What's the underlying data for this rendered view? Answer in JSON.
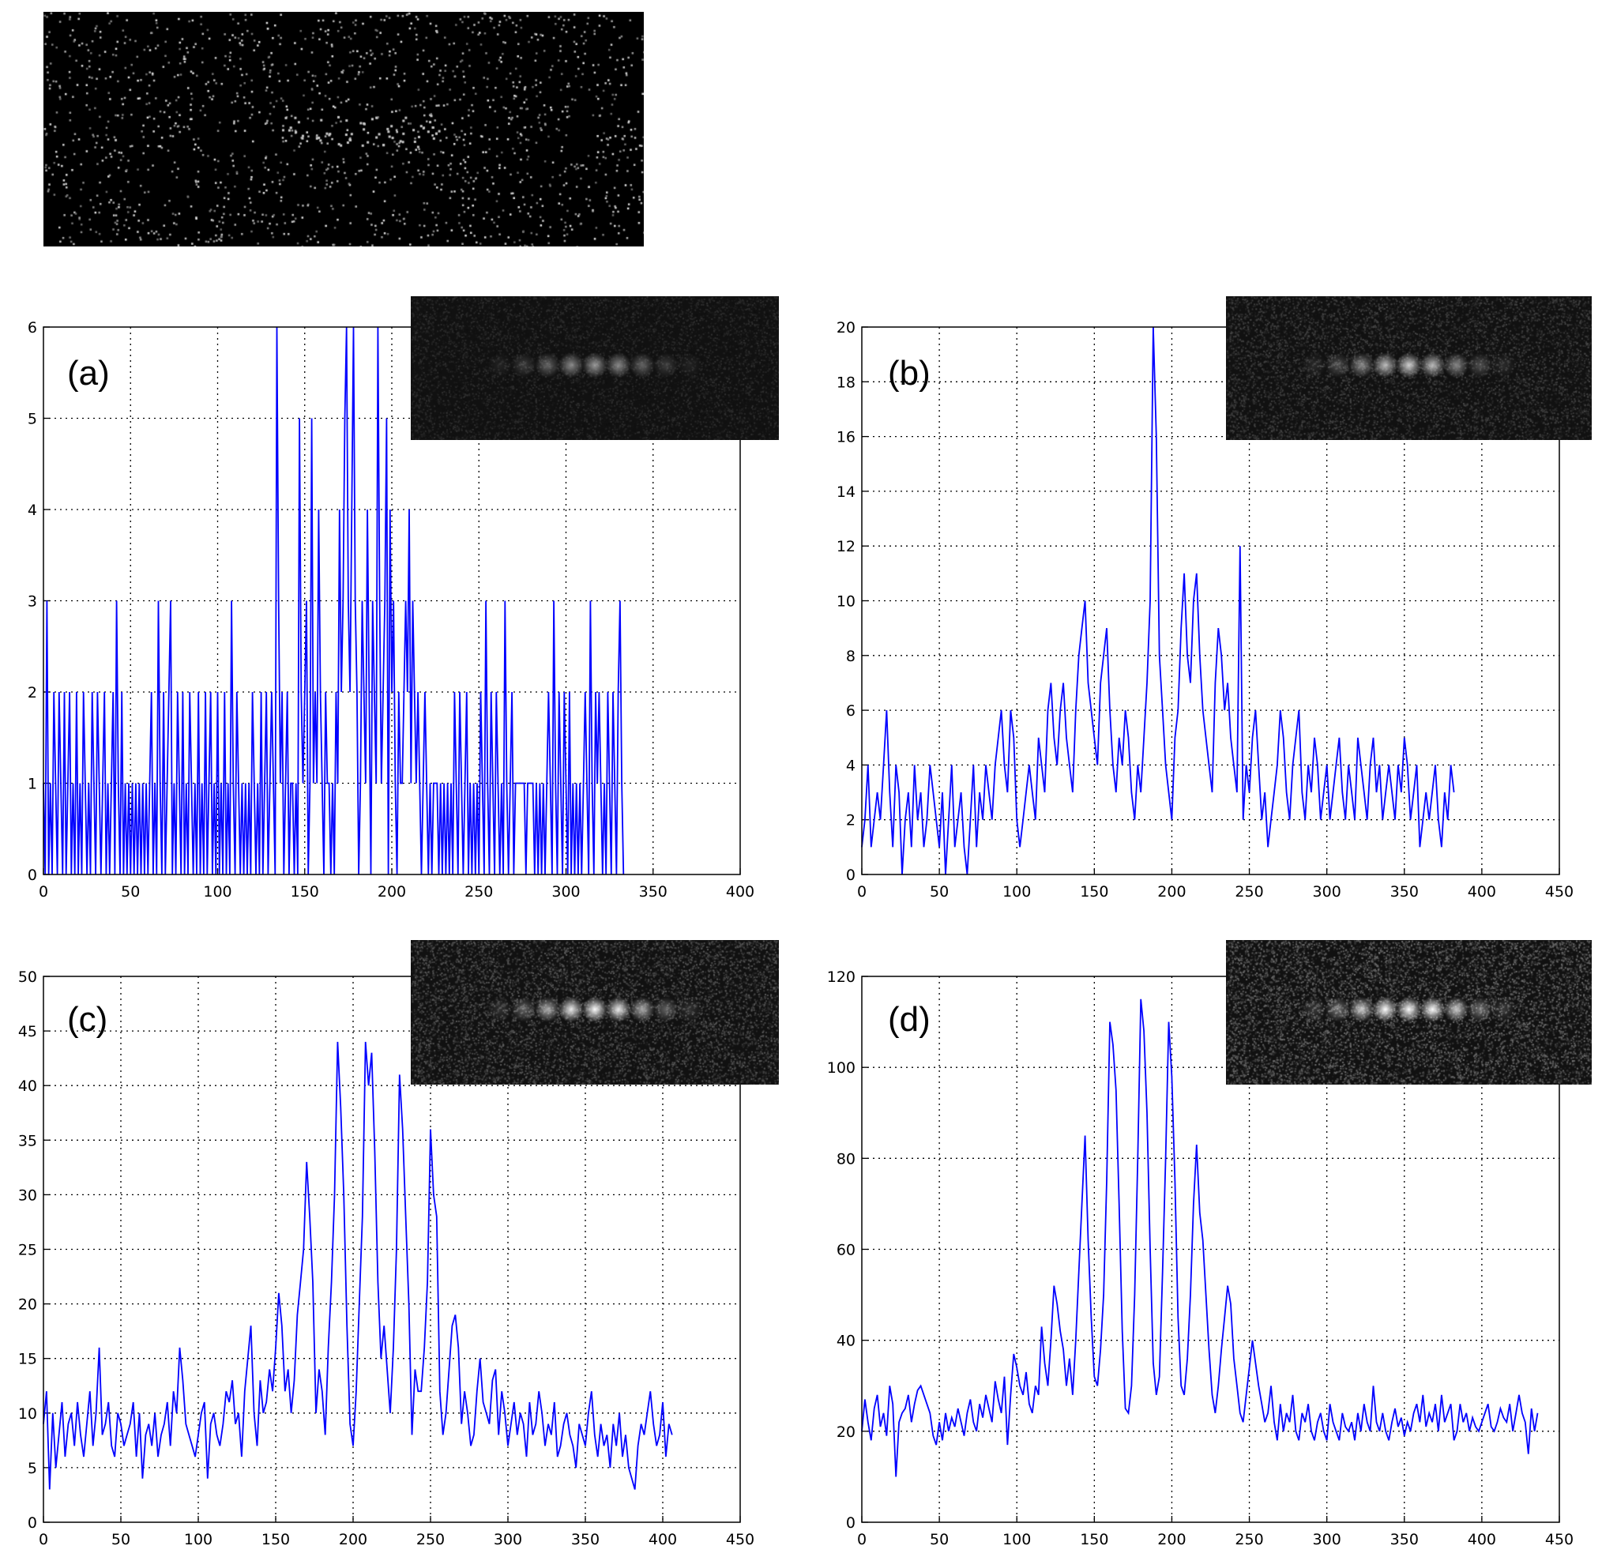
{
  "chart_data": [
    {
      "type": "line",
      "panel_label": "(a)",
      "xlim": [
        0,
        400
      ],
      "ylim": [
        0,
        6
      ],
      "xticks": [
        0,
        50,
        100,
        150,
        200,
        250,
        300,
        350,
        400
      ],
      "yticks": [
        0,
        1,
        2,
        3,
        4,
        5,
        6
      ],
      "grid": true,
      "series_color": "#0000ff",
      "x_start": 0,
      "x_step": 1,
      "y": [
        1,
        0,
        3,
        0,
        1,
        0,
        2,
        1,
        0,
        2,
        1,
        0,
        2,
        0,
        1,
        2,
        0,
        1,
        0,
        2,
        0,
        1,
        0,
        2,
        1,
        0,
        1,
        0,
        2,
        1,
        0,
        2,
        1,
        0,
        1,
        2,
        0,
        1,
        0,
        1,
        2,
        0,
        3,
        1,
        0,
        2,
        0,
        1,
        0,
        1,
        0,
        1,
        0,
        1,
        0,
        1,
        0,
        1,
        0,
        1,
        0,
        1,
        2,
        0,
        1,
        0,
        3,
        1,
        0,
        2,
        0,
        1,
        2,
        3,
        0,
        1,
        0,
        2,
        1,
        0,
        2,
        0,
        1,
        0,
        2,
        1,
        0,
        1,
        0,
        2,
        0,
        1,
        0,
        2,
        0,
        1,
        2,
        0,
        1,
        0,
        2,
        0,
        1,
        0,
        2,
        0,
        1,
        0,
        3,
        1,
        0,
        2,
        1,
        0,
        1,
        0,
        1,
        0,
        1,
        0,
        2,
        1,
        0,
        1,
        0,
        2,
        0,
        1,
        2,
        0,
        1,
        2,
        1,
        0,
        6,
        3,
        1,
        2,
        0,
        1,
        2,
        0,
        1,
        1,
        0,
        1,
        0,
        5,
        2,
        1,
        2,
        3,
        0,
        1,
        5,
        1,
        2,
        1,
        4,
        2,
        1,
        0,
        2,
        1,
        1,
        0,
        1,
        0,
        2,
        1,
        4,
        2,
        3,
        5,
        6,
        3,
        2,
        4,
        6,
        3,
        2,
        0,
        1,
        3,
        2,
        1,
        4,
        2,
        0,
        3,
        2,
        1,
        6,
        3,
        1,
        2,
        3,
        5,
        0,
        4,
        2,
        3,
        1,
        0,
        2,
        1,
        1,
        2,
        3,
        2,
        4,
        1,
        3,
        2,
        1,
        2,
        1,
        0,
        1,
        2,
        1,
        0,
        1,
        0,
        1,
        1,
        1,
        0,
        1,
        0,
        1,
        0,
        1,
        0,
        1,
        0,
        2,
        1,
        0,
        2,
        1,
        0,
        1,
        2,
        0,
        1,
        0,
        1,
        0,
        1,
        0,
        2,
        1,
        0,
        3,
        1,
        0,
        2,
        1,
        0,
        2,
        1,
        0,
        1,
        0,
        3,
        1,
        0,
        1,
        2,
        0,
        1,
        1,
        1,
        1,
        1,
        1,
        0,
        1,
        1,
        1,
        1,
        0,
        1,
        0,
        1,
        0,
        1,
        0,
        1,
        2,
        1,
        0,
        3,
        1,
        0,
        2,
        1,
        0,
        2,
        1,
        0,
        2,
        0,
        1,
        0,
        1,
        0,
        1,
        0,
        1,
        2,
        1,
        0,
        3,
        1,
        0,
        2,
        1,
        2,
        1,
        0,
        1,
        0,
        2,
        1,
        0,
        2,
        1,
        0,
        2,
        3,
        1,
        0
      ]
    },
    {
      "type": "line",
      "panel_label": "(b)",
      "xlim": [
        0,
        450
      ],
      "ylim": [
        0,
        20
      ],
      "xticks": [
        0,
        50,
        100,
        150,
        200,
        250,
        300,
        350,
        400,
        450
      ],
      "yticks": [
        0,
        2,
        4,
        6,
        8,
        10,
        12,
        14,
        16,
        18,
        20
      ],
      "grid": true,
      "series_color": "#0000ff",
      "x_start": 0,
      "x_step": 2,
      "y": [
        1,
        2,
        4,
        1,
        2,
        3,
        2,
        4,
        6,
        3,
        1,
        4,
        3,
        0,
        2,
        3,
        1,
        4,
        2,
        3,
        1,
        2,
        4,
        3,
        2,
        1,
        3,
        0,
        2,
        4,
        1,
        2,
        3,
        1,
        0,
        2,
        4,
        1,
        3,
        2,
        4,
        3,
        2,
        4,
        5,
        6,
        4,
        3,
        6,
        5,
        2,
        1,
        2,
        3,
        4,
        3,
        2,
        5,
        4,
        3,
        6,
        7,
        5,
        4,
        6,
        7,
        5,
        4,
        3,
        6,
        8,
        9,
        10,
        7,
        6,
        5,
        4,
        7,
        8,
        9,
        6,
        4,
        3,
        5,
        4,
        6,
        5,
        3,
        2,
        4,
        3,
        5,
        7,
        10,
        20,
        16,
        8,
        6,
        4,
        3,
        2,
        5,
        6,
        9,
        11,
        8,
        7,
        10,
        11,
        8,
        6,
        5,
        4,
        3,
        7,
        9,
        8,
        6,
        7,
        5,
        4,
        3,
        12,
        2,
        4,
        3,
        5,
        6,
        4,
        2,
        3,
        1,
        2,
        3,
        4,
        6,
        5,
        3,
        2,
        4,
        5,
        6,
        3,
        2,
        4,
        3,
        5,
        4,
        2,
        3,
        4,
        2,
        3,
        4,
        5,
        3,
        2,
        4,
        3,
        2,
        5,
        4,
        3,
        2,
        4,
        5,
        3,
        4,
        2,
        3,
        4,
        3,
        2,
        4,
        3,
        5,
        4,
        2,
        3,
        4,
        1,
        2,
        3,
        2,
        3,
        4,
        2,
        1,
        3,
        2,
        4,
        3
      ]
    },
    {
      "type": "line",
      "panel_label": "(c)",
      "xlim": [
        0,
        450
      ],
      "ylim": [
        0,
        50
      ],
      "xticks": [
        0,
        50,
        100,
        150,
        200,
        250,
        300,
        350,
        400,
        450
      ],
      "yticks": [
        0,
        5,
        10,
        15,
        20,
        25,
        30,
        35,
        40,
        45,
        50
      ],
      "grid": true,
      "series_color": "#0000ff",
      "x_start": 0,
      "x_step": 2,
      "y": [
        9,
        12,
        3,
        10,
        5,
        8,
        11,
        6,
        9,
        10,
        7,
        11,
        8,
        6,
        9,
        12,
        7,
        10,
        16,
        8,
        9,
        11,
        7,
        6,
        10,
        9,
        7,
        8,
        9,
        11,
        6,
        10,
        4,
        8,
        9,
        7,
        10,
        6,
        8,
        9,
        11,
        7,
        12,
        10,
        16,
        13,
        9,
        8,
        7,
        6,
        8,
        10,
        11,
        4,
        9,
        10,
        8,
        7,
        9,
        12,
        11,
        13,
        9,
        10,
        6,
        12,
        15,
        18,
        10,
        7,
        13,
        10,
        11,
        14,
        12,
        16,
        21,
        18,
        12,
        14,
        10,
        13,
        19,
        22,
        25,
        33,
        28,
        22,
        10,
        14,
        12,
        8,
        16,
        22,
        30,
        44,
        38,
        30,
        18,
        9,
        7,
        12,
        20,
        28,
        44,
        40,
        43,
        34,
        22,
        15,
        18,
        14,
        10,
        16,
        25,
        41,
        36,
        28,
        20,
        8,
        14,
        12,
        12,
        16,
        22,
        36,
        30,
        28,
        12,
        8,
        10,
        14,
        18,
        19,
        16,
        9,
        12,
        10,
        7,
        8,
        12,
        15,
        11,
        10,
        9,
        13,
        14,
        8,
        12,
        10,
        7,
        9,
        11,
        8,
        10,
        9,
        6,
        11,
        8,
        9,
        12,
        10,
        7,
        9,
        8,
        11,
        6,
        7,
        9,
        10,
        8,
        7,
        5,
        9,
        8,
        7,
        10,
        12,
        8,
        6,
        9,
        7,
        8,
        5,
        9,
        7,
        10,
        6,
        8,
        5,
        4,
        3,
        7,
        9,
        8,
        10,
        12,
        9,
        7,
        8,
        11,
        6,
        9,
        8
      ]
    },
    {
      "type": "line",
      "panel_label": "(d)",
      "xlim": [
        0,
        450
      ],
      "ylim": [
        0,
        120
      ],
      "xticks": [
        0,
        50,
        100,
        150,
        200,
        250,
        300,
        350,
        400,
        450
      ],
      "yticks": [
        0,
        20,
        40,
        60,
        80,
        100,
        120
      ],
      "grid": true,
      "series_color": "#0000ff",
      "x_start": 0,
      "x_step": 2,
      "y": [
        20,
        27,
        22,
        18,
        25,
        28,
        21,
        24,
        19,
        30,
        26,
        10,
        22,
        24,
        25,
        28,
        22,
        26,
        29,
        30,
        28,
        26,
        24,
        19,
        17,
        22,
        18,
        24,
        20,
        23,
        21,
        25,
        22,
        19,
        24,
        27,
        22,
        20,
        26,
        23,
        28,
        25,
        22,
        31,
        27,
        24,
        32,
        17,
        28,
        37,
        34,
        30,
        28,
        33,
        26,
        24,
        30,
        28,
        43,
        35,
        30,
        40,
        52,
        48,
        42,
        38,
        30,
        36,
        28,
        40,
        55,
        70,
        85,
        62,
        45,
        32,
        30,
        38,
        50,
        75,
        110,
        105,
        95,
        70,
        42,
        25,
        24,
        30,
        50,
        80,
        115,
        108,
        90,
        60,
        35,
        28,
        32,
        55,
        80,
        110,
        98,
        75,
        45,
        30,
        28,
        36,
        50,
        70,
        83,
        68,
        62,
        50,
        38,
        28,
        24,
        30,
        38,
        45,
        52,
        48,
        36,
        30,
        24,
        22,
        28,
        34,
        40,
        35,
        30,
        26,
        22,
        24,
        30,
        22,
        18,
        26,
        20,
        24,
        22,
        28,
        20,
        18,
        24,
        22,
        26,
        20,
        18,
        22,
        24,
        20,
        18,
        26,
        22,
        20,
        18,
        24,
        21,
        20,
        22,
        18,
        24,
        20,
        26,
        22,
        20,
        30,
        22,
        20,
        24,
        20,
        18,
        22,
        25,
        21,
        23,
        19,
        22,
        20,
        24,
        26,
        22,
        28,
        21,
        24,
        22,
        26,
        20,
        28,
        22,
        24,
        26,
        18,
        20,
        26,
        22,
        24,
        20,
        23,
        21,
        20,
        22,
        24,
        26,
        21,
        20,
        22,
        25,
        23,
        22,
        26,
        20,
        24,
        28,
        24,
        22,
        15,
        25,
        20,
        24
      ]
    }
  ]
}
